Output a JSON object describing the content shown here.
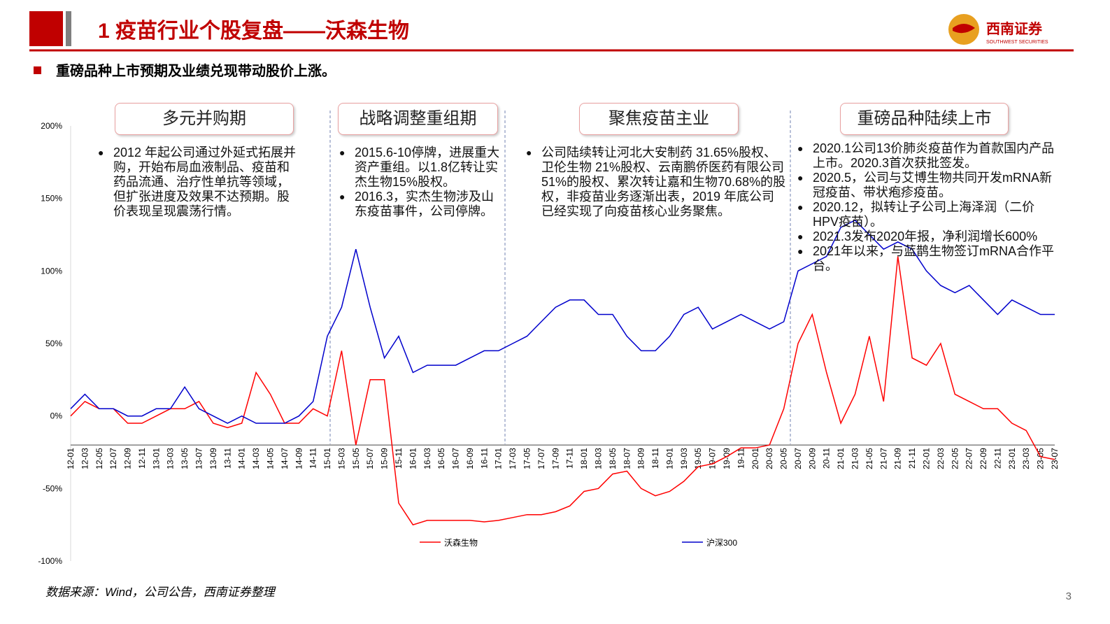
{
  "header": {
    "title": "1 疫苗行业个股复盘——沃森生物",
    "logo_cn": "西南证券",
    "logo_en": "SOUTHWEST SECURITIES"
  },
  "subtitle": "重磅品种上市预期及业绩兑现带动股价上涨。",
  "phases": [
    {
      "label": "多元并购期",
      "bullets": [
        "2012 年起公司通过外延式拓展并购，开始布局血液制品、疫苗和药品流通、治疗性单抗等领域，但扩张进度及效果不达预期。股价表现呈现震荡行情。"
      ]
    },
    {
      "label": "战略调整重组期",
      "bullets": [
        "2015.6-10停牌，进展重大资产重组。以1.8亿转让实杰生物15%股权。",
        "2016.3，实杰生物涉及山东疫苗事件，公司停牌。"
      ]
    },
    {
      "label": "聚焦疫苗主业",
      "bullets": [
        "公司陆续转让河北大安制药 31.65%股权、卫伦生物 21%股权、云南鹏侨医药有限公司 51%的股权、累次转让嘉和生物70.68%的股权，非疫苗业务逐渐出表，2019 年底公司已经实现了向疫苗核心业务聚焦。"
      ]
    },
    {
      "label": "重磅品种陆续上市",
      "bullets": [
        "2020.1公司13价肺炎疫苗作为首款国内产品上市。2020.3首次获批签发。",
        "2020.5，公司与艾博生物共同开发mRNA新冠疫苗、带状疱疹疫苗。",
        "2020.12，拟转让子公司上海泽润（二价HPV疫苗）。",
        "2021.3发布2020年报，净利润增长600%",
        "2021年以来，与蓝鹊生物签订mRNA合作平台。"
      ]
    }
  ],
  "source": "数据来源：Wind，公司公告，西南证券整理",
  "page_number": "3",
  "chart_data": {
    "type": "line",
    "categories": [
      "12-01",
      "12-03",
      "12-05",
      "12-07",
      "12-09",
      "12-11",
      "13-01",
      "13-03",
      "13-05",
      "13-07",
      "13-09",
      "13-11",
      "14-01",
      "14-03",
      "14-05",
      "14-07",
      "14-09",
      "14-11",
      "15-01",
      "15-03",
      "15-05",
      "15-07",
      "15-09",
      "15-11",
      "16-01",
      "16-03",
      "16-05",
      "16-07",
      "16-09",
      "16-11",
      "17-01",
      "17-03",
      "17-05",
      "17-07",
      "17-09",
      "17-11",
      "18-01",
      "18-03",
      "18-05",
      "18-07",
      "18-09",
      "18-11",
      "19-01",
      "19-03",
      "19-05",
      "19-07",
      "19-09",
      "19-11",
      "20-01",
      "20-03",
      "20-05",
      "20-07",
      "20-09",
      "20-11",
      "21-01",
      "21-03",
      "21-05",
      "21-07",
      "21-09",
      "21-11",
      "22-01",
      "22-03",
      "22-05",
      "22-07",
      "22-09",
      "22-11",
      "23-01",
      "23-03",
      "23-05",
      "23-07"
    ],
    "series": [
      {
        "name": "沃森生物",
        "color": "#ff0000",
        "values": [
          0,
          10,
          5,
          5,
          -5,
          -5,
          0,
          5,
          5,
          10,
          -5,
          -8,
          -5,
          30,
          15,
          -5,
          -5,
          5,
          0,
          45,
          -20,
          25,
          25,
          -60,
          -75,
          -72,
          -72,
          -72,
          -72,
          -73,
          -72,
          -70,
          -68,
          -68,
          -66,
          -62,
          -52,
          -50,
          -40,
          -38,
          -50,
          -55,
          -52,
          -45,
          -35,
          -33,
          -28,
          -22,
          -22,
          -20,
          5,
          50,
          70,
          30,
          -5,
          15,
          55,
          10,
          110,
          40,
          35,
          50,
          15,
          10,
          5,
          5,
          -5,
          -10,
          -28,
          -30
        ]
      },
      {
        "name": "沪深300",
        "color": "#0000cc",
        "values": [
          5,
          15,
          5,
          5,
          0,
          0,
          5,
          5,
          20,
          5,
          0,
          -5,
          0,
          -5,
          -5,
          -5,
          0,
          10,
          55,
          75,
          115,
          75,
          40,
          55,
          30,
          35,
          35,
          35,
          40,
          45,
          45,
          50,
          55,
          65,
          75,
          80,
          80,
          70,
          70,
          55,
          45,
          45,
          55,
          70,
          75,
          60,
          65,
          70,
          65,
          60,
          65,
          100,
          105,
          110,
          130,
          135,
          125,
          115,
          120,
          115,
          100,
          90,
          85,
          90,
          80,
          70,
          80,
          75,
          70,
          70
        ]
      }
    ],
    "ylim": [
      -100,
      200
    ],
    "yticks": [
      {
        "value": -100,
        "label": "-100%"
      },
      {
        "value": -50,
        "label": "-50%"
      },
      {
        "value": 0,
        "label": "0%"
      },
      {
        "value": 50,
        "label": "50%"
      },
      {
        "value": 100,
        "label": "100%"
      },
      {
        "value": 150,
        "label": "150%"
      },
      {
        "value": 200,
        "label": "200%"
      }
    ],
    "x_axis_at": -20
  }
}
